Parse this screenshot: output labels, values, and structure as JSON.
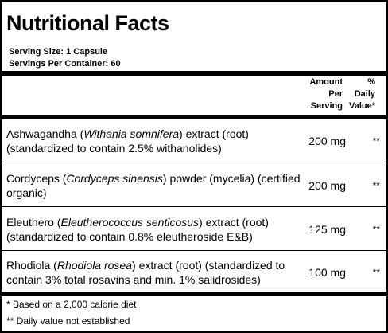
{
  "title": "Nutritional Facts",
  "serving_size": "Serving Size:  1 Capsule",
  "servings_per_container": "Servings Per Container:  60",
  "header": {
    "amount_line1": "Amount",
    "amount_line2": "Per",
    "amount_line3": "Serving",
    "dv_line1": "%",
    "dv_line2": "Daily",
    "dv_line3": "Value*"
  },
  "ingredients": [
    {
      "name": "Ashwagandha",
      "latin": "Withania somnifera",
      "rest": "extract (root) (standardized to contain 2.5% withanolides)",
      "amount": "200 mg",
      "dv": "**"
    },
    {
      "name": "Cordyceps",
      "latin": "Cordyceps sinensis",
      "rest": "powder (mycelia) (certified organic)",
      "amount": "200 mg",
      "dv": "**"
    },
    {
      "name": "Eleuthero",
      "latin": "Eleutherococcus senticosus",
      "rest": "extract (root) (standardized to contain 0.8% eleutheroside E&B)",
      "amount": "125 mg",
      "dv": "**"
    },
    {
      "name": "Rhodiola",
      "latin": "Rhodiola rosea",
      "rest": "extract (root) (standardized to contain 3% total rosavins and min. 1% salidrosides)",
      "amount": "100 mg",
      "dv": "**"
    }
  ],
  "footnotes": {
    "calorie": "* Based on a 2,000 calorie diet",
    "dv_not_established": "** Daily value not established"
  }
}
